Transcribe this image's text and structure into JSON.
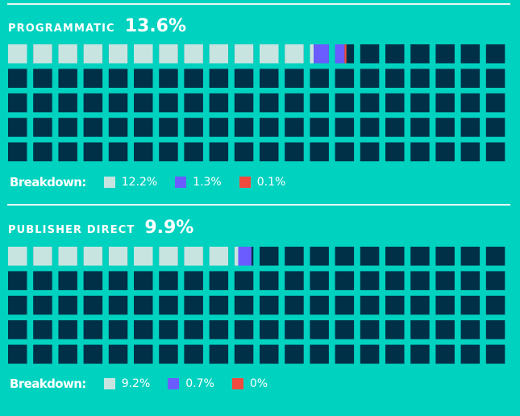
{
  "colors": {
    "background": "#00d2c0",
    "empty_cell": "#003048",
    "divider": "#e6f7f5",
    "series": [
      "#c8e4e0",
      "#6b5cff",
      "#f04a3e"
    ]
  },
  "chart_data": [
    {
      "type": "waffle",
      "title": "PROGRAMMATIC",
      "total_label": "13.6%",
      "total_value": 13.6,
      "grid": {
        "rows": 5,
        "cols": 20,
        "cells_total": 100
      },
      "legend_title": "Breakdown:",
      "series": [
        {
          "value": 12.2,
          "label": "12.2%",
          "color": "#c8e4e0"
        },
        {
          "value": 1.3,
          "label": "1.3%",
          "color": "#6b5cff"
        },
        {
          "value": 0.1,
          "label": "0.1%",
          "color": "#f04a3e"
        }
      ]
    },
    {
      "type": "waffle",
      "title": "PUBLISHER DIRECT",
      "total_label": "9.9%",
      "total_value": 9.9,
      "grid": {
        "rows": 5,
        "cols": 20,
        "cells_total": 100
      },
      "legend_title": "Breakdown:",
      "series": [
        {
          "value": 9.2,
          "label": "9.2%",
          "color": "#c8e4e0"
        },
        {
          "value": 0.7,
          "label": "0.7%",
          "color": "#6b5cff"
        },
        {
          "value": 0,
          "label": "0%",
          "color": "#f04a3e"
        }
      ]
    }
  ]
}
